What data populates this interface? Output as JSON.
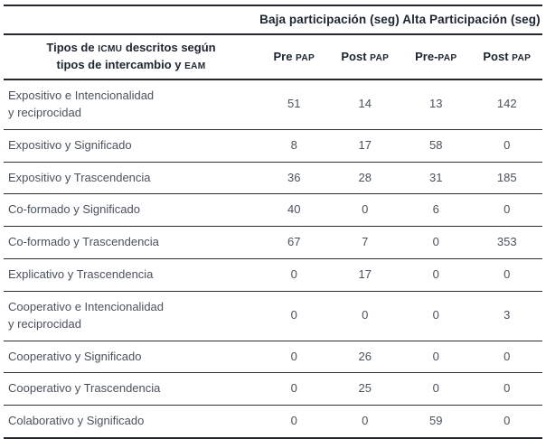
{
  "table": {
    "group_headers": [
      "Baja participación (seg)",
      "Alta Participación (seg)"
    ],
    "row_header": {
      "l1a": "Tipos de ",
      "l1b": "ICMU",
      "l1c": " descritos según",
      "l2a": "tipos de intercambio y ",
      "l2b": "EAM"
    },
    "col_headers": [
      {
        "main": "Pre ",
        "acr": "PAP"
      },
      {
        "main": "Post ",
        "acr": "PAP"
      },
      {
        "main": "Pre-",
        "acr": "PAP"
      },
      {
        "main": "Post ",
        "acr": "PAP"
      }
    ],
    "rows": [
      {
        "label": "Expositivo e Intencionalidad\ny reciprocidad",
        "values": [
          "51",
          "14",
          "13",
          "142"
        ]
      },
      {
        "label": "Expositivo y Significado",
        "values": [
          "8",
          "17",
          "58",
          "0"
        ]
      },
      {
        "label": "Expositivo y Trascendencia",
        "values": [
          "36",
          "28",
          "31",
          "185"
        ]
      },
      {
        "label": "Co-formado y Significado",
        "values": [
          "40",
          "0",
          "6",
          "0"
        ]
      },
      {
        "label": "Co-formado y Trascendencia",
        "values": [
          "67",
          "7",
          "0",
          "353"
        ]
      },
      {
        "label": "Explicativo y Trascendencia",
        "values": [
          "0",
          "17",
          "0",
          "0"
        ]
      },
      {
        "label": "Cooperativo e Intencionalidad\ny reciprocidad",
        "values": [
          "0",
          "0",
          "0",
          "3"
        ]
      },
      {
        "label": "Cooperativo y Significado",
        "values": [
          "0",
          "26",
          "0",
          "0"
        ]
      },
      {
        "label": "Cooperativo y Trascendencia",
        "values": [
          "0",
          "25",
          "0",
          "0"
        ]
      },
      {
        "label": "Colaborativo y Significado",
        "values": [
          "0",
          "0",
          "59",
          "0"
        ]
      }
    ],
    "colors": {
      "header_text": "#1c2530",
      "body_text": "#4b525c",
      "rule_heavy": "#23272d",
      "rule_light": "#2c3036",
      "background": "#ffffff"
    }
  }
}
